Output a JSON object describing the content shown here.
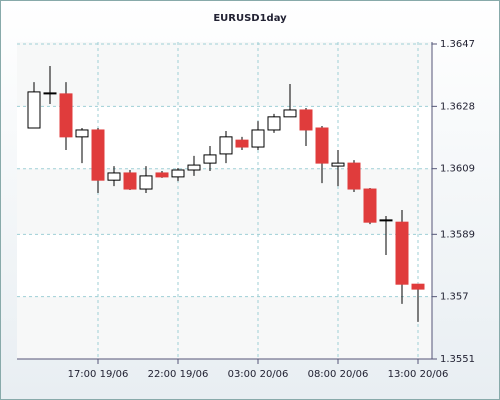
{
  "chart_data": {
    "type": "candlestick",
    "title": "EURUSD1day",
    "categories": [
      null,
      null,
      null,
      null,
      "17:00 19/06",
      null,
      null,
      null,
      null,
      "22:00 19/06",
      null,
      null,
      null,
      null,
      "03:00 20/06",
      null,
      null,
      null,
      null,
      "08:00 20/06",
      null,
      null,
      null,
      null,
      "13:00 20/06"
    ],
    "open": [
      1.36214,
      1.36318,
      1.36318,
      1.36187,
      1.36208,
      1.36055,
      1.36077,
      1.36028,
      1.36077,
      1.36065,
      1.36086,
      1.36107,
      1.36135,
      1.36177,
      1.36156,
      1.36208,
      1.36248,
      1.36269,
      1.36214,
      1.36098,
      1.36107,
      1.36028,
      1.35931,
      1.35927,
      1.35738
    ],
    "high": [
      1.36354,
      1.36403,
      1.36354,
      1.36214,
      1.36214,
      1.36098,
      1.36086,
      1.36098,
      1.36083,
      1.36092,
      1.36129,
      1.36159,
      1.36205,
      1.36187,
      1.36235,
      1.36257,
      1.36348,
      1.36275,
      1.3622,
      1.36147,
      1.36116,
      1.36031,
      1.35946,
      1.35964,
      1.35738
    ],
    "low": [
      1.36214,
      1.36287,
      1.36147,
      1.36107,
      1.36016,
      1.36037,
      1.36025,
      1.36016,
      1.36062,
      1.36052,
      1.36068,
      1.36083,
      1.36107,
      1.36147,
      1.36147,
      1.36199,
      1.36248,
      1.36159,
      1.36046,
      1.36037,
      1.36019,
      1.35921,
      1.35827,
      1.35678,
      1.35623
    ],
    "close": [
      1.36324,
      1.36321,
      1.36187,
      1.36208,
      1.36055,
      1.36077,
      1.36028,
      1.36068,
      1.36065,
      1.36086,
      1.36101,
      1.36132,
      1.36187,
      1.36156,
      1.36208,
      1.36248,
      1.36269,
      1.36208,
      1.36107,
      1.36107,
      1.36028,
      1.35927,
      1.35934,
      1.35738,
      1.35723
    ],
    "up_color": "#ffffff",
    "down_color": "#e03c3c",
    "ylim": [
      1.3551,
      1.3647
    ],
    "yticks": [
      1.3551,
      1.357,
      1.3589,
      1.3609,
      1.3628,
      1.3647
    ],
    "grid": true
  }
}
